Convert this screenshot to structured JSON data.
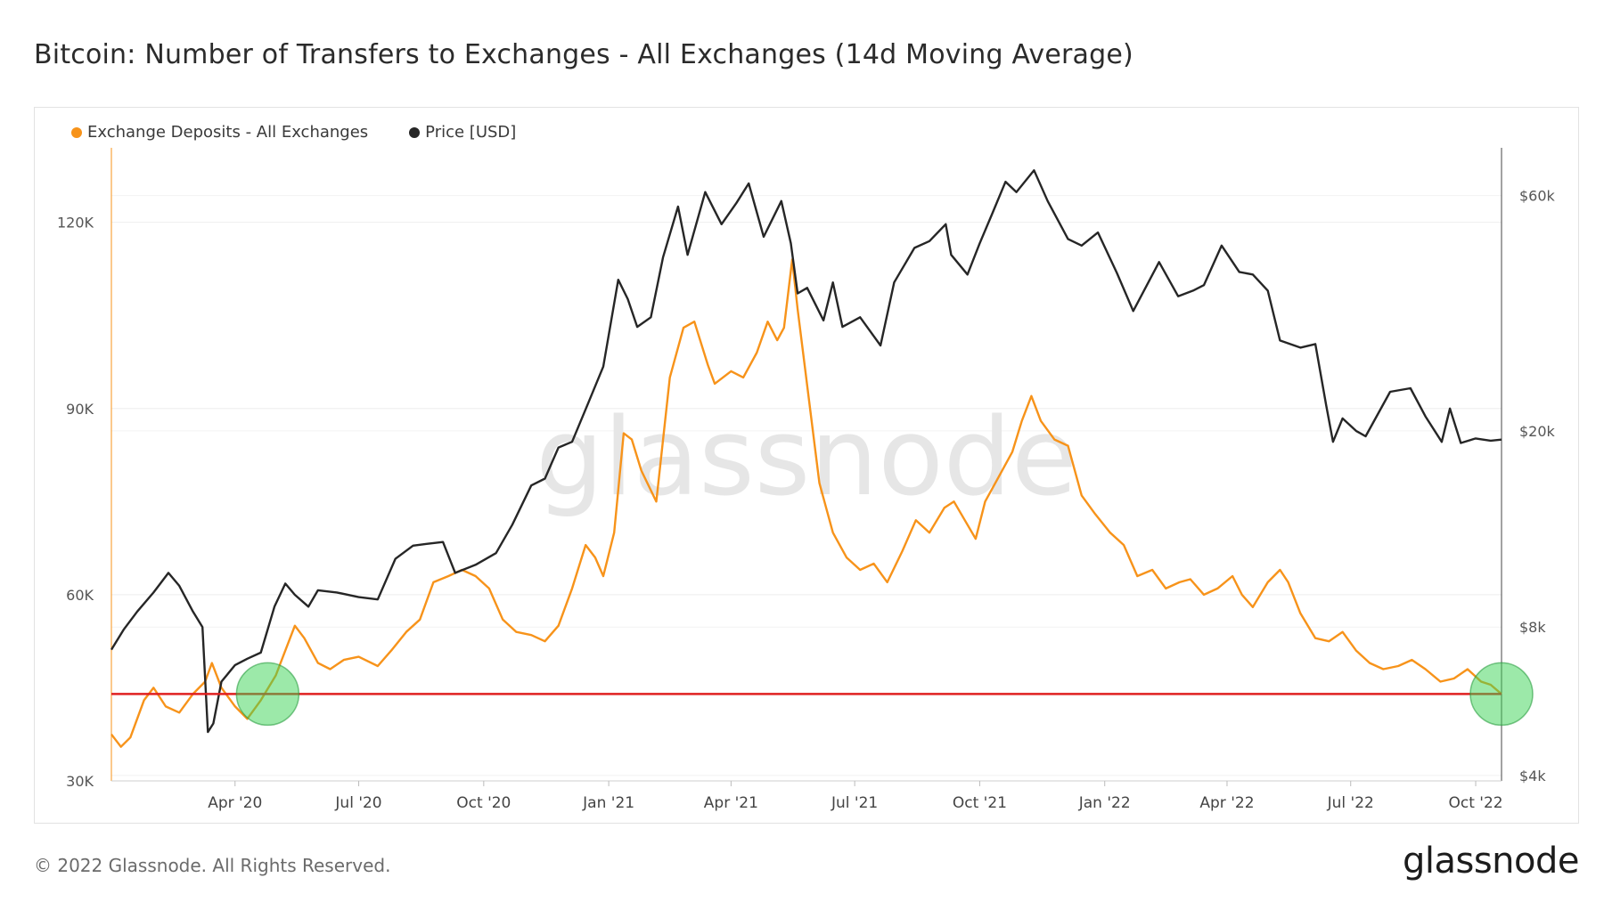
{
  "title": "Bitcoin: Number of Transfers to Exchanges - All Exchanges (14d Moving Average)",
  "footer": {
    "copyright": "© 2022 Glassnode. All Rights Reserved.",
    "logo": "glassnode"
  },
  "watermark": "glassnode",
  "chart_data": {
    "type": "line",
    "legend_position": "top-left",
    "x_tick_labels": [
      "Apr '20",
      "Jul '20",
      "Oct '20",
      "Jan '21",
      "Apr '21",
      "Jul '21",
      "Oct '21",
      "Jan '22",
      "Apr '22",
      "Jul '22",
      "Oct '22"
    ],
    "x_ticks": [
      "2020-04-01",
      "2020-07-01",
      "2020-10-01",
      "2021-01-01",
      "2021-04-01",
      "2021-07-01",
      "2021-10-01",
      "2022-01-01",
      "2022-04-01",
      "2022-07-01",
      "2022-10-01"
    ],
    "x_range": [
      "2020-01-01",
      "2022-10-20"
    ],
    "y_left": {
      "ticks": [
        30000,
        60000,
        90000,
        120000
      ],
      "tick_labels": [
        "30K",
        "60K",
        "90K",
        "120K"
      ],
      "range": [
        30000,
        132000
      ]
    },
    "y_right": {
      "scale": "log",
      "ticks": [
        4000,
        8000,
        20000,
        60000
      ],
      "tick_labels": [
        "$4k",
        "$8k",
        "$20k",
        "$60k"
      ],
      "range": [
        3900,
        75000
      ]
    },
    "threshold": {
      "value": 44000,
      "color": "#e02020"
    },
    "highlights": [
      {
        "x": "2020-04-25",
        "y": 44000,
        "color": "#39d353"
      },
      {
        "x": "2022-10-20",
        "y": 44000,
        "color": "#39d353"
      }
    ],
    "grid": true,
    "series": [
      {
        "name": "Exchange Deposits - All Exchanges",
        "axis": "left",
        "color": "#f7931a",
        "points": [
          [
            "2020-01-01",
            37500
          ],
          [
            "2020-01-08",
            35500
          ],
          [
            "2020-01-15",
            37000
          ],
          [
            "2020-01-25",
            43000
          ],
          [
            "2020-02-01",
            45000
          ],
          [
            "2020-02-10",
            42000
          ],
          [
            "2020-02-20",
            41000
          ],
          [
            "2020-03-01",
            44000
          ],
          [
            "2020-03-10",
            46000
          ],
          [
            "2020-03-15",
            49000
          ],
          [
            "2020-03-22",
            45000
          ],
          [
            "2020-04-01",
            42000
          ],
          [
            "2020-04-10",
            40000
          ],
          [
            "2020-04-20",
            43000
          ],
          [
            "2020-05-01",
            47000
          ],
          [
            "2020-05-08",
            51000
          ],
          [
            "2020-05-15",
            55000
          ],
          [
            "2020-05-22",
            53000
          ],
          [
            "2020-06-01",
            49000
          ],
          [
            "2020-06-10",
            48000
          ],
          [
            "2020-06-20",
            49500
          ],
          [
            "2020-07-01",
            50000
          ],
          [
            "2020-07-15",
            48500
          ],
          [
            "2020-07-25",
            51000
          ],
          [
            "2020-08-05",
            54000
          ],
          [
            "2020-08-15",
            56000
          ],
          [
            "2020-08-25",
            62000
          ],
          [
            "2020-09-05",
            63000
          ],
          [
            "2020-09-15",
            64000
          ],
          [
            "2020-09-25",
            63000
          ],
          [
            "2020-10-05",
            61000
          ],
          [
            "2020-10-15",
            56000
          ],
          [
            "2020-10-25",
            54000
          ],
          [
            "2020-11-05",
            53500
          ],
          [
            "2020-11-15",
            52500
          ],
          [
            "2020-11-25",
            55000
          ],
          [
            "2020-12-05",
            61000
          ],
          [
            "2020-12-15",
            68000
          ],
          [
            "2020-12-22",
            66000
          ],
          [
            "2020-12-28",
            63000
          ],
          [
            "2021-01-05",
            70000
          ],
          [
            "2021-01-12",
            86000
          ],
          [
            "2021-01-18",
            85000
          ],
          [
            "2021-01-25",
            80000
          ],
          [
            "2021-02-05",
            75000
          ],
          [
            "2021-02-15",
            95000
          ],
          [
            "2021-02-25",
            103000
          ],
          [
            "2021-03-05",
            104000
          ],
          [
            "2021-03-15",
            97000
          ],
          [
            "2021-03-20",
            94000
          ],
          [
            "2021-04-01",
            96000
          ],
          [
            "2021-04-10",
            95000
          ],
          [
            "2021-04-20",
            99000
          ],
          [
            "2021-04-28",
            104000
          ],
          [
            "2021-05-05",
            101000
          ],
          [
            "2021-05-10",
            103000
          ],
          [
            "2021-05-16",
            114000
          ],
          [
            "2021-05-20",
            106000
          ],
          [
            "2021-05-28",
            92000
          ],
          [
            "2021-06-05",
            78000
          ],
          [
            "2021-06-15",
            70000
          ],
          [
            "2021-06-25",
            66000
          ],
          [
            "2021-07-05",
            64000
          ],
          [
            "2021-07-15",
            65000
          ],
          [
            "2021-07-25",
            62000
          ],
          [
            "2021-08-05",
            67000
          ],
          [
            "2021-08-15",
            72000
          ],
          [
            "2021-08-25",
            70000
          ],
          [
            "2021-09-05",
            74000
          ],
          [
            "2021-09-12",
            75000
          ],
          [
            "2021-09-20",
            72000
          ],
          [
            "2021-09-28",
            69000
          ],
          [
            "2021-10-05",
            75000
          ],
          [
            "2021-10-15",
            79000
          ],
          [
            "2021-10-25",
            83000
          ],
          [
            "2021-11-01",
            88000
          ],
          [
            "2021-11-08",
            92000
          ],
          [
            "2021-11-15",
            88000
          ],
          [
            "2021-11-25",
            85000
          ],
          [
            "2021-12-05",
            84000
          ],
          [
            "2021-12-15",
            76000
          ],
          [
            "2021-12-25",
            73000
          ],
          [
            "2022-01-05",
            70000
          ],
          [
            "2022-01-15",
            68000
          ],
          [
            "2022-01-25",
            63000
          ],
          [
            "2022-02-05",
            64000
          ],
          [
            "2022-02-15",
            61000
          ],
          [
            "2022-02-25",
            62000
          ],
          [
            "2022-03-05",
            62500
          ],
          [
            "2022-03-15",
            60000
          ],
          [
            "2022-03-25",
            61000
          ],
          [
            "2022-04-05",
            63000
          ],
          [
            "2022-04-12",
            60000
          ],
          [
            "2022-04-20",
            58000
          ],
          [
            "2022-05-01",
            62000
          ],
          [
            "2022-05-10",
            64000
          ],
          [
            "2022-05-16",
            62000
          ],
          [
            "2022-05-25",
            57000
          ],
          [
            "2022-06-05",
            53000
          ],
          [
            "2022-06-15",
            52500
          ],
          [
            "2022-06-25",
            54000
          ],
          [
            "2022-07-05",
            51000
          ],
          [
            "2022-07-15",
            49000
          ],
          [
            "2022-07-25",
            48000
          ],
          [
            "2022-08-05",
            48500
          ],
          [
            "2022-08-15",
            49500
          ],
          [
            "2022-08-25",
            48000
          ],
          [
            "2022-09-05",
            46000
          ],
          [
            "2022-09-15",
            46500
          ],
          [
            "2022-09-25",
            48000
          ],
          [
            "2022-10-05",
            46000
          ],
          [
            "2022-10-12",
            45500
          ],
          [
            "2022-10-20",
            44000
          ]
        ]
      },
      {
        "name": "Price [USD]",
        "axis": "right",
        "color": "#262626",
        "points": [
          [
            "2020-01-01",
            7200
          ],
          [
            "2020-01-10",
            7900
          ],
          [
            "2020-01-20",
            8600
          ],
          [
            "2020-02-01",
            9400
          ],
          [
            "2020-02-12",
            10300
          ],
          [
            "2020-02-20",
            9700
          ],
          [
            "2020-03-01",
            8600
          ],
          [
            "2020-03-08",
            8000
          ],
          [
            "2020-03-12",
            4900
          ],
          [
            "2020-03-16",
            5100
          ],
          [
            "2020-03-22",
            6200
          ],
          [
            "2020-04-01",
            6700
          ],
          [
            "2020-04-10",
            6900
          ],
          [
            "2020-04-20",
            7100
          ],
          [
            "2020-04-30",
            8800
          ],
          [
            "2020-05-08",
            9800
          ],
          [
            "2020-05-15",
            9300
          ],
          [
            "2020-05-25",
            8800
          ],
          [
            "2020-06-01",
            9500
          ],
          [
            "2020-06-15",
            9400
          ],
          [
            "2020-07-01",
            9200
          ],
          [
            "2020-07-15",
            9100
          ],
          [
            "2020-07-28",
            11000
          ],
          [
            "2020-08-10",
            11700
          ],
          [
            "2020-08-20",
            11800
          ],
          [
            "2020-09-01",
            11900
          ],
          [
            "2020-09-10",
            10300
          ],
          [
            "2020-09-25",
            10700
          ],
          [
            "2020-10-10",
            11300
          ],
          [
            "2020-10-22",
            12900
          ],
          [
            "2020-11-05",
            15500
          ],
          [
            "2020-11-15",
            16000
          ],
          [
            "2020-11-25",
            18500
          ],
          [
            "2020-12-05",
            19000
          ],
          [
            "2020-12-17",
            22800
          ],
          [
            "2020-12-28",
            27000
          ],
          [
            "2021-01-08",
            40500
          ],
          [
            "2021-01-15",
            37000
          ],
          [
            "2021-01-22",
            32500
          ],
          [
            "2021-02-01",
            34000
          ],
          [
            "2021-02-10",
            45000
          ],
          [
            "2021-02-21",
            57000
          ],
          [
            "2021-02-28",
            45500
          ],
          [
            "2021-03-13",
            61000
          ],
          [
            "2021-03-25",
            52500
          ],
          [
            "2021-04-05",
            58000
          ],
          [
            "2021-04-14",
            63500
          ],
          [
            "2021-04-25",
            49500
          ],
          [
            "2021-05-08",
            58500
          ],
          [
            "2021-05-15",
            48000
          ],
          [
            "2021-05-20",
            38000
          ],
          [
            "2021-05-27",
            39000
          ],
          [
            "2021-06-08",
            33500
          ],
          [
            "2021-06-15",
            40000
          ],
          [
            "2021-06-22",
            32500
          ],
          [
            "2021-07-05",
            34000
          ],
          [
            "2021-07-20",
            29800
          ],
          [
            "2021-07-30",
            40000
          ],
          [
            "2021-08-14",
            47000
          ],
          [
            "2021-08-25",
            48500
          ],
          [
            "2021-09-06",
            52500
          ],
          [
            "2021-09-10",
            45500
          ],
          [
            "2021-09-22",
            41500
          ],
          [
            "2021-10-01",
            48000
          ],
          [
            "2021-10-10",
            55000
          ],
          [
            "2021-10-20",
            64000
          ],
          [
            "2021-10-28",
            61000
          ],
          [
            "2021-11-10",
            67500
          ],
          [
            "2021-11-20",
            58500
          ],
          [
            "2021-12-05",
            49000
          ],
          [
            "2021-12-15",
            47500
          ],
          [
            "2021-12-27",
            50500
          ],
          [
            "2022-01-10",
            41800
          ],
          [
            "2022-01-22",
            35000
          ],
          [
            "2022-02-10",
            44000
          ],
          [
            "2022-02-24",
            37500
          ],
          [
            "2022-03-07",
            38500
          ],
          [
            "2022-03-15",
            39500
          ],
          [
            "2022-03-28",
            47500
          ],
          [
            "2022-04-10",
            42000
          ],
          [
            "2022-04-20",
            41500
          ],
          [
            "2022-05-01",
            38500
          ],
          [
            "2022-05-10",
            30500
          ],
          [
            "2022-05-25",
            29500
          ],
          [
            "2022-06-05",
            30000
          ],
          [
            "2022-06-13",
            22500
          ],
          [
            "2022-06-18",
            19000
          ],
          [
            "2022-06-25",
            21200
          ],
          [
            "2022-07-05",
            20000
          ],
          [
            "2022-07-12",
            19500
          ],
          [
            "2022-07-30",
            24000
          ],
          [
            "2022-08-14",
            24400
          ],
          [
            "2022-08-25",
            21400
          ],
          [
            "2022-09-06",
            19000
          ],
          [
            "2022-09-12",
            22200
          ],
          [
            "2022-09-20",
            18900
          ],
          [
            "2022-10-01",
            19300
          ],
          [
            "2022-10-12",
            19100
          ],
          [
            "2022-10-20",
            19200
          ]
        ]
      }
    ]
  }
}
